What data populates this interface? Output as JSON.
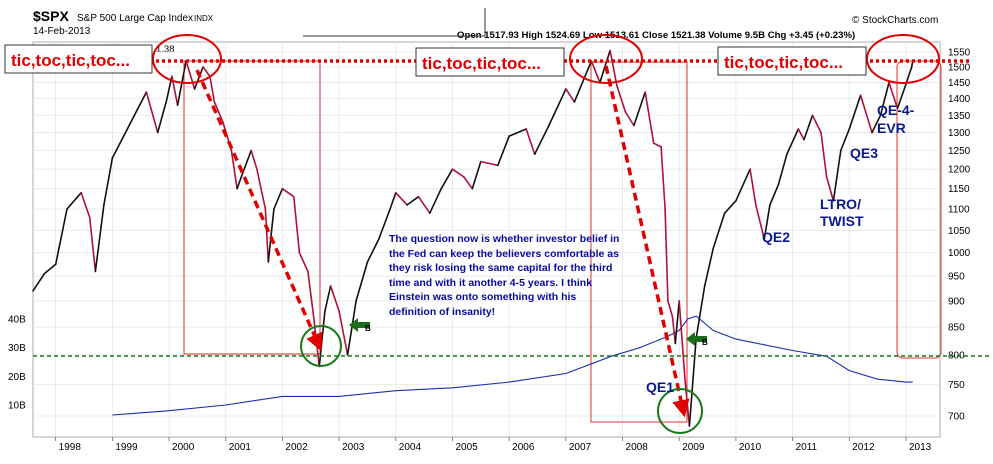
{
  "header": {
    "symbol": "$SPX",
    "name": "S&P 500 Large Cap Index",
    "exchange": "INDX",
    "date": "14-Feb-2013",
    "ohlc": "Open 1517.93   High 1524.69   Low 1513.61   Close 1521.38   Volume 9.5B   Chg +3.45 (+0.23%)",
    "watermark": "© StockCharts.com",
    "partial_label": "1.38"
  },
  "annotations": {
    "tic_1": "tic,toc,tic,toc...",
    "tic_2": "tic,toc,tic,toc...",
    "tic_3": "tic,toc,tic,toc...",
    "qe1": "QE1",
    "qe2": "QE2",
    "ltro_1": "LTRO/",
    "ltro_2": "TWIST",
    "qe3": "QE3",
    "qe4_1": "QE-4-",
    "qe4_2": "EVR",
    "note": "The question now is whether investor belief in the Fed can keep the believers comfortable as they risk losing the same capital for the third time and with it another 4-5 years. I think Einstein was onto something with his definition of insanity!",
    "arrow_badge": "B"
  },
  "chart_data": {
    "type": "line",
    "x_ticks": [
      "1998",
      "1999",
      "2000",
      "2001",
      "2002",
      "2003",
      "2004",
      "2005",
      "2006",
      "2007",
      "2008",
      "2009",
      "2010",
      "2011",
      "2012",
      "2013"
    ],
    "y_ticks_right": [
      "1550",
      "1500",
      "1450",
      "1400",
      "1350",
      "1300",
      "1250",
      "1200",
      "1150",
      "1100",
      "1050",
      "1000",
      "950",
      "900",
      "850",
      "800",
      "750",
      "700"
    ],
    "y_ticks_left": [
      "40B",
      "30B",
      "20B",
      "10B"
    ],
    "yscale": "log",
    "ylim": [
      680,
      1570
    ],
    "xlim": [
      1997.6,
      2013.6
    ],
    "grid": true,
    "series": [
      {
        "name": "$SPX",
        "points": [
          [
            1997.6,
            920
          ],
          [
            1997.8,
            955
          ],
          [
            1998.0,
            975
          ],
          [
            1998.2,
            1100
          ],
          [
            1998.45,
            1140
          ],
          [
            1998.6,
            1080
          ],
          [
            1998.7,
            960
          ],
          [
            1998.85,
            1110
          ],
          [
            1999.0,
            1230
          ],
          [
            1999.2,
            1290
          ],
          [
            1999.45,
            1370
          ],
          [
            1999.6,
            1420
          ],
          [
            1999.8,
            1300
          ],
          [
            1999.95,
            1390
          ],
          [
            2000.05,
            1470
          ],
          [
            2000.15,
            1380
          ],
          [
            2000.3,
            1520
          ],
          [
            2000.45,
            1430
          ],
          [
            2000.6,
            1500
          ],
          [
            2000.72,
            1470
          ],
          [
            2000.8,
            1390
          ],
          [
            2000.95,
            1330
          ],
          [
            2001.1,
            1250
          ],
          [
            2001.2,
            1150
          ],
          [
            2001.3,
            1190
          ],
          [
            2001.45,
            1250
          ],
          [
            2001.55,
            1200
          ],
          [
            2001.7,
            1100
          ],
          [
            2001.75,
            980
          ],
          [
            2001.85,
            1100
          ],
          [
            2002.0,
            1150
          ],
          [
            2002.2,
            1130
          ],
          [
            2002.3,
            1000
          ],
          [
            2002.45,
            960
          ],
          [
            2002.55,
            870
          ],
          [
            2002.65,
            780
          ],
          [
            2002.75,
            880
          ],
          [
            2002.85,
            930
          ],
          [
            2003.0,
            880
          ],
          [
            2003.15,
            800
          ],
          [
            2003.3,
            900
          ],
          [
            2003.5,
            980
          ],
          [
            2003.7,
            1030
          ],
          [
            2003.9,
            1100
          ],
          [
            2004.0,
            1140
          ],
          [
            2004.2,
            1110
          ],
          [
            2004.4,
            1130
          ],
          [
            2004.6,
            1090
          ],
          [
            2004.8,
            1150
          ],
          [
            2005.0,
            1200
          ],
          [
            2005.2,
            1180
          ],
          [
            2005.35,
            1150
          ],
          [
            2005.5,
            1220
          ],
          [
            2005.8,
            1210
          ],
          [
            2006.0,
            1290
          ],
          [
            2006.3,
            1310
          ],
          [
            2006.45,
            1240
          ],
          [
            2006.7,
            1320
          ],
          [
            2007.0,
            1430
          ],
          [
            2007.15,
            1390
          ],
          [
            2007.45,
            1520
          ],
          [
            2007.6,
            1450
          ],
          [
            2007.78,
            1555
          ],
          [
            2007.9,
            1440
          ],
          [
            2008.05,
            1360
          ],
          [
            2008.2,
            1320
          ],
          [
            2008.4,
            1420
          ],
          [
            2008.55,
            1270
          ],
          [
            2008.68,
            1260
          ],
          [
            2008.75,
            1100
          ],
          [
            2008.8,
            900
          ],
          [
            2008.88,
            870
          ],
          [
            2008.93,
            820
          ],
          [
            2009.0,
            900
          ],
          [
            2009.1,
            760
          ],
          [
            2009.18,
            685
          ],
          [
            2009.3,
            830
          ],
          [
            2009.45,
            930
          ],
          [
            2009.6,
            1010
          ],
          [
            2009.8,
            1090
          ],
          [
            2010.0,
            1120
          ],
          [
            2010.25,
            1200
          ],
          [
            2010.35,
            1110
          ],
          [
            2010.5,
            1030
          ],
          [
            2010.6,
            1110
          ],
          [
            2010.75,
            1160
          ],
          [
            2010.9,
            1240
          ],
          [
            2011.1,
            1310
          ],
          [
            2011.2,
            1280
          ],
          [
            2011.35,
            1350
          ],
          [
            2011.5,
            1300
          ],
          [
            2011.6,
            1180
          ],
          [
            2011.72,
            1120
          ],
          [
            2011.85,
            1250
          ],
          [
            2012.0,
            1310
          ],
          [
            2012.2,
            1410
          ],
          [
            2012.4,
            1300
          ],
          [
            2012.55,
            1350
          ],
          [
            2012.7,
            1450
          ],
          [
            2012.85,
            1370
          ],
          [
            2012.95,
            1420
          ],
          [
            2013.1,
            1500
          ],
          [
            2013.12,
            1521
          ]
        ]
      },
      {
        "name": "Volume",
        "points": [
          [
            1999.0,
            6.5
          ],
          [
            2000.0,
            8
          ],
          [
            2001.0,
            10
          ],
          [
            2002.0,
            13
          ],
          [
            2003.0,
            13
          ],
          [
            2004.0,
            15
          ],
          [
            2005.0,
            16
          ],
          [
            2006.0,
            18
          ],
          [
            2007.0,
            21
          ],
          [
            2007.8,
            27
          ],
          [
            2008.3,
            30
          ],
          [
            2008.8,
            34
          ],
          [
            2009.0,
            36
          ],
          [
            2009.15,
            40
          ],
          [
            2009.3,
            41
          ],
          [
            2009.6,
            36
          ],
          [
            2010.0,
            33
          ],
          [
            2010.5,
            31
          ],
          [
            2011.0,
            29
          ],
          [
            2011.6,
            27
          ],
          [
            2012.0,
            22
          ],
          [
            2012.5,
            19
          ],
          [
            2013.0,
            18
          ],
          [
            2013.12,
            18
          ]
        ]
      }
    ]
  },
  "colors": {
    "price_up": "#111111",
    "price_down": "#b0103a",
    "volume": "#1c2fb0",
    "dotted_red": "#e00000",
    "box_red": "#e03030",
    "dashed_green": "#1a7a1a",
    "arrow_green": "#1a6e1a",
    "qe_text": "#0a1a8c",
    "note_text": "#0a0aa0",
    "grid": "#e6e6e6"
  }
}
